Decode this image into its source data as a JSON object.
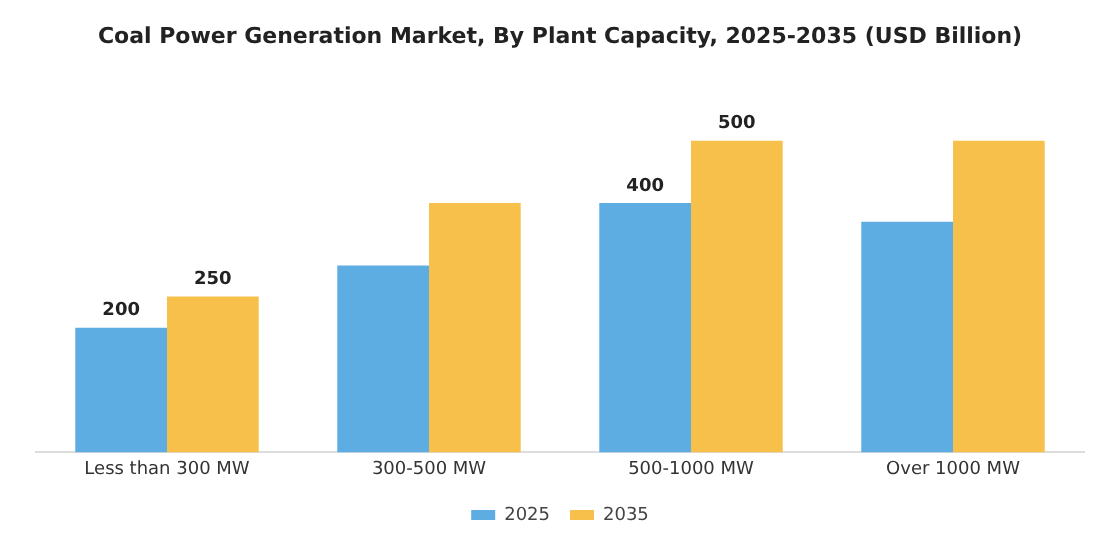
{
  "chart_data": {
    "type": "bar",
    "title": "Coal Power Generation Market, By Plant Capacity, 2025-2035 (USD Billion)",
    "categories": [
      "Less than 300 MW",
      "300-500 MW",
      "500-1000 MW",
      "Over 1000 MW"
    ],
    "series": [
      {
        "name": "2025",
        "color": "#5dade2",
        "values": [
          200,
          300,
          400,
          370
        ],
        "value_labels": [
          "200",
          null,
          "400",
          null
        ]
      },
      {
        "name": "2035",
        "color": "#f7c04a",
        "values": [
          250,
          400,
          500,
          500
        ],
        "value_labels": [
          "250",
          null,
          "500",
          null
        ]
      }
    ],
    "tick_labels": "x",
    "grid": false,
    "legend": "bottom"
  }
}
